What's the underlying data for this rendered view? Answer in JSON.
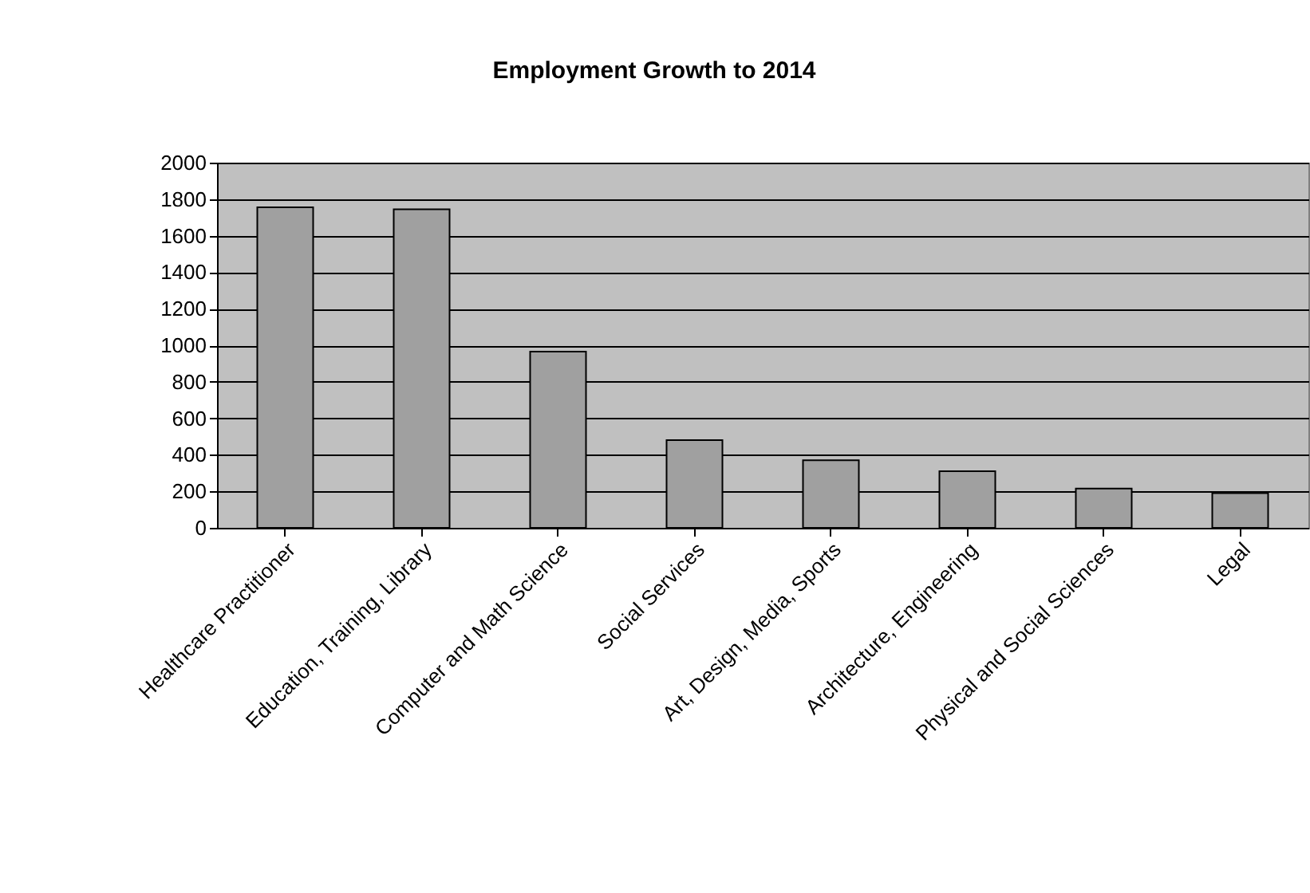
{
  "chart_data": {
    "type": "bar",
    "title": "Employment Growth to 2014",
    "categories": [
      "Healthcare Practitioner",
      "Education, Training, Library",
      "Computer and Math Science",
      "Social Services",
      "Art, Design, Media, Sports",
      "Architecture, Engineering",
      "Physical and Social Sciences",
      "Legal"
    ],
    "values": [
      1755,
      1745,
      965,
      480,
      370,
      310,
      215,
      190
    ],
    "color": "#a0a0a0",
    "ylim": [
      0,
      2000
    ],
    "yticks": [
      0,
      200,
      400,
      600,
      800,
      1000,
      1200,
      1400,
      1600,
      1800,
      2000
    ],
    "grid": "y"
  }
}
